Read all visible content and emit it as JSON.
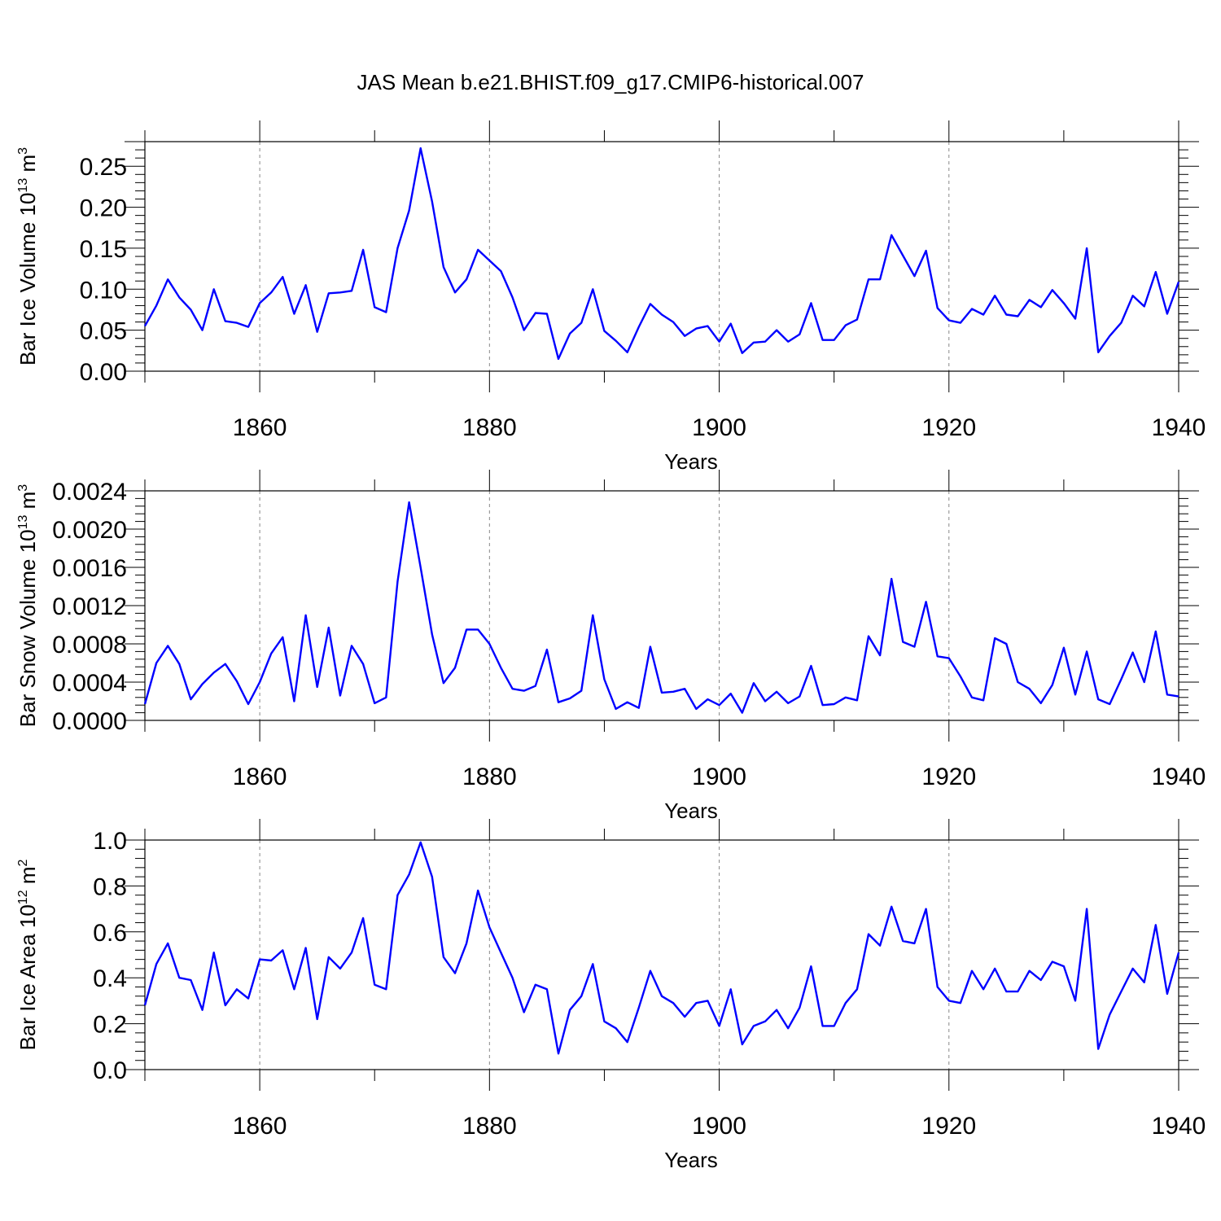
{
  "title": "JAS Mean b.e21.BHIST.f09_g17.CMIP6-historical.007",
  "colors": {
    "line": "#0000ff",
    "grid": "#888888",
    "axis": "#000000"
  },
  "chart_data": [
    {
      "type": "line",
      "xlabel": "Years",
      "ylabel": "Bar Ice Volume 10",
      "ylabel_exp": "13",
      "ylabel_unit": " m",
      "ylabel_unit_exp": "3",
      "xlim": [
        1850,
        1940
      ],
      "ylim": [
        0,
        0.28
      ],
      "xticks": [
        1860,
        1880,
        1900,
        1920,
        1940
      ],
      "yticks": [
        0.0,
        0.05,
        0.1,
        0.15,
        0.2,
        0.25
      ],
      "ytick_labels": [
        "0.00",
        "0.05",
        "0.10",
        "0.15",
        "0.20",
        "0.25"
      ],
      "grid_x": [
        1860,
        1880,
        1900,
        1920
      ],
      "series": [
        {
          "x_start": 1850,
          "values": [
            0.055,
            0.08,
            0.112,
            0.09,
            0.075,
            0.05,
            0.1,
            0.061,
            0.059,
            0.054,
            0.083,
            0.096,
            0.115,
            0.07,
            0.105,
            0.048,
            0.095,
            0.096,
            0.098,
            0.148,
            0.078,
            0.072,
            0.15,
            0.196,
            0.272,
            0.207,
            0.127,
            0.096,
            0.112,
            0.148,
            0.135,
            0.122,
            0.09,
            0.05,
            0.071,
            0.07,
            0.015,
            0.046,
            0.059,
            0.1,
            0.049,
            0.037,
            0.023,
            0.054,
            0.082,
            0.069,
            0.06,
            0.043,
            0.052,
            0.055,
            0.036,
            0.058,
            0.022,
            0.035,
            0.036,
            0.05,
            0.036,
            0.045,
            0.083,
            0.038,
            0.038,
            0.056,
            0.063,
            0.112,
            0.112,
            0.166,
            0.141,
            0.116,
            0.147,
            0.077,
            0.062,
            0.059,
            0.076,
            0.069,
            0.092,
            0.069,
            0.067,
            0.087,
            0.078,
            0.099,
            0.083,
            0.064,
            0.15,
            0.023,
            0.043,
            0.059,
            0.092,
            0.079,
            0.121,
            0.07,
            0.109
          ]
        }
      ]
    },
    {
      "type": "line",
      "xlabel": "Years",
      "ylabel": "Bar Snow Volume 10",
      "ylabel_exp": "13",
      "ylabel_unit": " m",
      "ylabel_unit_exp": "3",
      "xlim": [
        1850,
        1940
      ],
      "ylim": [
        0,
        0.0024
      ],
      "xticks": [
        1860,
        1880,
        1900,
        1920,
        1940
      ],
      "yticks": [
        0.0,
        0.0004,
        0.0008,
        0.0012,
        0.0016,
        0.002,
        0.0024
      ],
      "ytick_labels": [
        "0.0000",
        "0.0004",
        "0.0008",
        "0.0012",
        "0.0016",
        "0.0020",
        "0.0024"
      ],
      "grid_x": [
        1860,
        1880,
        1900,
        1920
      ],
      "series": [
        {
          "x_start": 1850,
          "values": [
            0.00017,
            0.0006,
            0.00078,
            0.00059,
            0.00022,
            0.00038,
            0.0005,
            0.00059,
            0.00041,
            0.00017,
            0.0004,
            0.0007,
            0.00087,
            0.0002,
            0.0011,
            0.00035,
            0.00097,
            0.00026,
            0.00078,
            0.00059,
            0.00018,
            0.00024,
            0.00145,
            0.00228,
            0.0016,
            0.0009,
            0.00039,
            0.00055,
            0.00095,
            0.00095,
            0.0008,
            0.00055,
            0.00033,
            0.00031,
            0.00036,
            0.00074,
            0.00019,
            0.00023,
            0.00031,
            0.0011,
            0.00043,
            0.00012,
            0.00019,
            0.00013,
            0.00077,
            0.00029,
            0.0003,
            0.00033,
            0.00012,
            0.00022,
            0.00016,
            0.00028,
            8e-05,
            0.00039,
            0.0002,
            0.0003,
            0.00018,
            0.00025,
            0.00057,
            0.00016,
            0.00017,
            0.00024,
            0.00021,
            0.00088,
            0.00068,
            0.00148,
            0.00082,
            0.00077,
            0.00124,
            0.00067,
            0.00065,
            0.00046,
            0.00024,
            0.00021,
            0.00086,
            0.0008,
            0.0004,
            0.00033,
            0.00018,
            0.00037,
            0.00076,
            0.00027,
            0.00072,
            0.00022,
            0.00017,
            0.00043,
            0.00071,
            0.0004,
            0.00093,
            0.00027,
            0.00025
          ]
        }
      ]
    },
    {
      "type": "line",
      "xlabel": "Years",
      "ylabel": "Bar Ice Area 10",
      "ylabel_exp": "12",
      "ylabel_unit": " m",
      "ylabel_unit_exp": "2",
      "xlim": [
        1850,
        1940
      ],
      "ylim": [
        0,
        1.0
      ],
      "xticks": [
        1860,
        1880,
        1900,
        1920,
        1940
      ],
      "yticks": [
        0.0,
        0.2,
        0.4,
        0.6,
        0.8,
        1.0
      ],
      "ytick_labels": [
        "0.0",
        "0.2",
        "0.4",
        "0.6",
        "0.8",
        "1.0"
      ],
      "grid_x": [
        1860,
        1880,
        1900,
        1920
      ],
      "series": [
        {
          "x_start": 1850,
          "values": [
            0.28,
            0.46,
            0.55,
            0.4,
            0.39,
            0.26,
            0.51,
            0.28,
            0.35,
            0.31,
            0.48,
            0.475,
            0.52,
            0.35,
            0.53,
            0.22,
            0.49,
            0.44,
            0.51,
            0.66,
            0.37,
            0.35,
            0.76,
            0.85,
            0.99,
            0.84,
            0.49,
            0.42,
            0.55,
            0.78,
            0.62,
            0.51,
            0.4,
            0.25,
            0.37,
            0.35,
            0.07,
            0.26,
            0.32,
            0.46,
            0.21,
            0.18,
            0.12,
            0.27,
            0.43,
            0.32,
            0.29,
            0.23,
            0.29,
            0.3,
            0.19,
            0.35,
            0.11,
            0.19,
            0.21,
            0.26,
            0.18,
            0.27,
            0.45,
            0.19,
            0.19,
            0.29,
            0.35,
            0.59,
            0.54,
            0.71,
            0.56,
            0.55,
            0.7,
            0.36,
            0.3,
            0.29,
            0.43,
            0.35,
            0.44,
            0.34,
            0.34,
            0.43,
            0.39,
            0.47,
            0.45,
            0.3,
            0.7,
            0.09,
            0.24,
            0.34,
            0.44,
            0.38,
            0.63,
            0.33,
            0.51
          ]
        }
      ]
    }
  ]
}
